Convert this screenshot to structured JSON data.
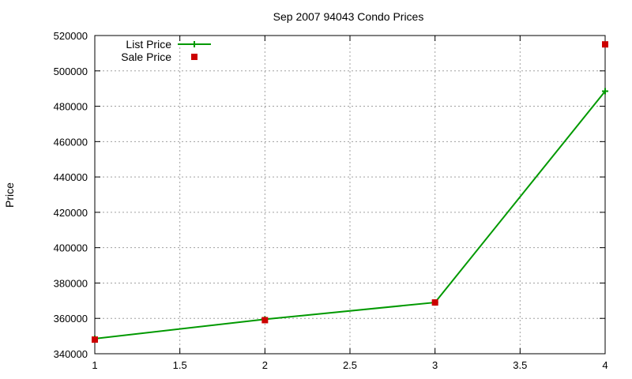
{
  "chart_data": {
    "type": "line",
    "title": "Sep 2007 94043 Condo Prices",
    "xlabel": "",
    "ylabel": "Price",
    "xlim": [
      1,
      4
    ],
    "ylim": [
      340000,
      520000
    ],
    "x_ticks": [
      "1",
      "1.5",
      "2",
      "2.5",
      "3",
      "3.5",
      "4"
    ],
    "y_ticks": [
      "340000",
      "360000",
      "380000",
      "400000",
      "420000",
      "440000",
      "460000",
      "480000",
      "500000",
      "520000"
    ],
    "grid": true,
    "legend_position": "top-left",
    "series": [
      {
        "name": "List Price",
        "style": "line-with-plus-markers",
        "color": "#009900",
        "x": [
          1,
          2,
          3,
          4
        ],
        "y": [
          348500,
          359500,
          369000,
          488500
        ]
      },
      {
        "name": "Sale Price",
        "style": "square-markers",
        "color": "#cc0000",
        "x": [
          1,
          2,
          3,
          4
        ],
        "y": [
          348000,
          359000,
          369000,
          515000
        ]
      }
    ]
  }
}
